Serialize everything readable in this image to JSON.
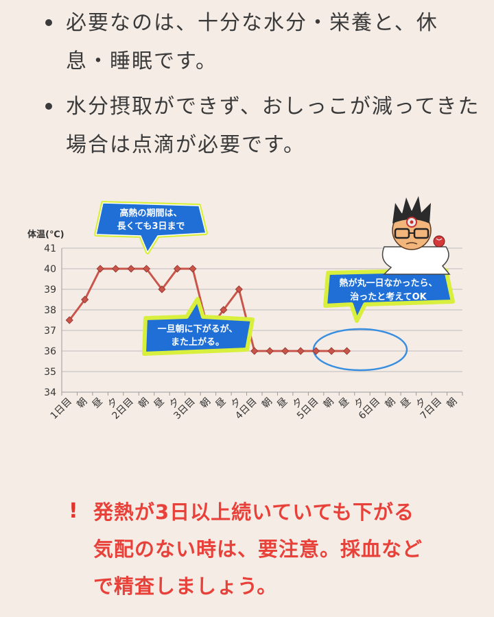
{
  "bullets": [
    {
      "text": "必要なのは、十分な水分・栄養と、休息・睡眠です。"
    },
    {
      "text": "水分摂取ができず、おしっこが減ってきた場合は点滴が必要です。"
    }
  ],
  "chart_data": {
    "type": "line",
    "ylabel": "体温(℃)",
    "ylim": [
      34,
      41
    ],
    "yticks": [
      34,
      35,
      36,
      37,
      38,
      39,
      40,
      41
    ],
    "grid": true,
    "line_color": "#c9544a",
    "categories": [
      "1日目",
      "朝",
      "昼",
      "夕",
      "2日目",
      "朝",
      "昼",
      "夕",
      "3日目",
      "朝",
      "昼",
      "夕",
      "4日目",
      "朝",
      "昼",
      "夕",
      "5日目",
      "朝",
      "昼",
      "夕",
      "6日目",
      "朝",
      "昼",
      "夕",
      "7日目",
      "朝"
    ],
    "points": [
      {
        "x": 1,
        "y": 37.5
      },
      {
        "x": 3,
        "y": 38.5
      },
      {
        "x": 5,
        "y": 40
      },
      {
        "x": 7,
        "y": 40
      },
      {
        "x": 9,
        "y": 40
      },
      {
        "x": 11,
        "y": 40
      },
      {
        "x": 13,
        "y": 39
      },
      {
        "x": 15,
        "y": 40
      },
      {
        "x": 17,
        "y": 40
      },
      {
        "x": 19,
        "y": 37
      },
      {
        "x": 21,
        "y": 38
      },
      {
        "x": 23,
        "y": 39
      },
      {
        "x": 25,
        "y": 36
      },
      {
        "x": 27,
        "y": 36
      },
      {
        "x": 29,
        "y": 36
      },
      {
        "x": 31,
        "y": 36
      },
      {
        "x": 33,
        "y": 36
      },
      {
        "x": 35,
        "y": 36
      },
      {
        "x": 37,
        "y": 36
      }
    ],
    "annotations": [
      {
        "lines": [
          "高熱の期間は、",
          "長くても3日まで"
        ]
      },
      {
        "lines": [
          "一旦朝に下がるが、",
          "また上がる。"
        ]
      },
      {
        "lines": [
          "熱が丸一日なかったら、",
          "治ったと考えてOK"
        ]
      }
    ]
  },
  "warning": {
    "mark": "!",
    "lines": [
      "発熱が3日以上続いていても下がる",
      "気配のない時は、要注意。採血など",
      "で精査しましょう。"
    ]
  }
}
